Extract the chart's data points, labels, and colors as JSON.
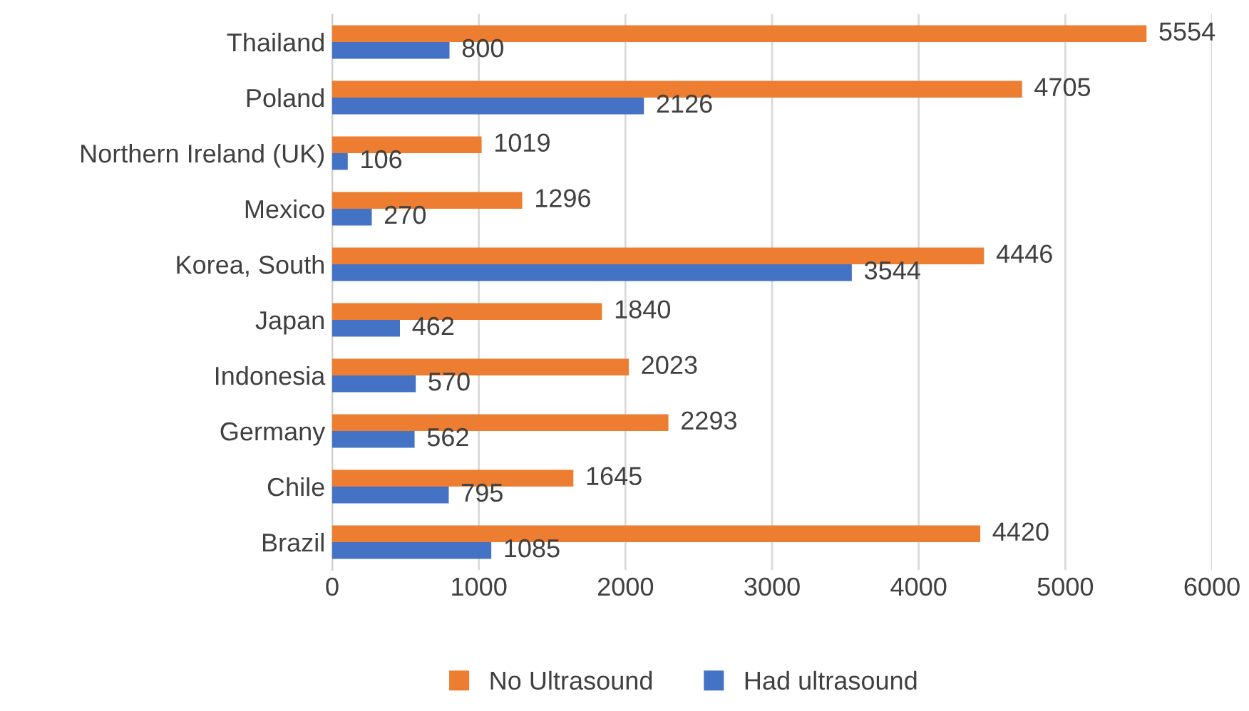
{
  "chart_data": {
    "type": "bar",
    "orientation": "horizontal",
    "categories": [
      "Thailand",
      "Poland",
      "Northern Ireland (UK)",
      "Mexico",
      "Korea, South",
      "Japan",
      "Indonesia",
      "Germany",
      "Chile",
      "Brazil"
    ],
    "series": [
      {
        "name": "No Ultrasound",
        "color": "#ed7d31",
        "values": [
          5554,
          4705,
          1019,
          1296,
          4446,
          1840,
          2023,
          2293,
          1645,
          4420
        ]
      },
      {
        "name": "Had ultrasound",
        "color": "#4472c4",
        "values": [
          800,
          2126,
          106,
          270,
          3544,
          462,
          570,
          562,
          795,
          1085
        ]
      }
    ],
    "xlim": [
      0,
      6000
    ],
    "xticks": [
      0,
      1000,
      2000,
      3000,
      4000,
      5000,
      6000
    ],
    "grid": "x",
    "legend": "bottom",
    "data_labels": true
  }
}
